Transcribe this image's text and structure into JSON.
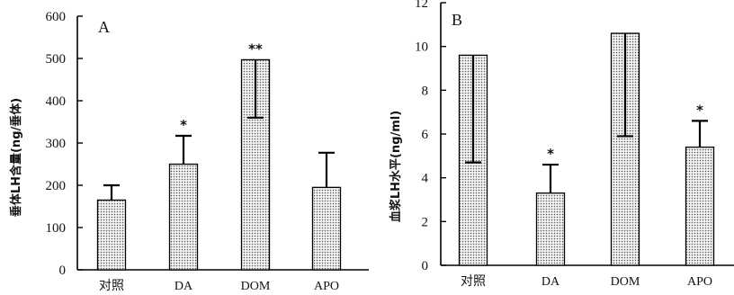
{
  "chart_data": [
    {
      "type": "bar",
      "panel": "A",
      "ylabel": "垂体LH含量(ng/垂体)",
      "ylim": [
        0,
        600
      ],
      "yticks": [
        0,
        100,
        200,
        300,
        400,
        500,
        600
      ],
      "categories": [
        "对照",
        "DA",
        "DOM",
        "APO"
      ],
      "values": [
        165,
        250,
        497,
        195
      ],
      "errors": [
        35,
        67,
        137,
        82
      ],
      "error_direction": [
        "up",
        "up",
        "down",
        "up"
      ],
      "significance": [
        "",
        "*",
        "**",
        ""
      ]
    },
    {
      "type": "bar",
      "panel": "B",
      "ylabel": "血浆LH水平(ng/ml)",
      "ylim": [
        0,
        12
      ],
      "yticks": [
        0,
        2,
        4,
        6,
        8,
        10,
        12
      ],
      "categories": [
        "对照",
        "DA",
        "DOM",
        "APO"
      ],
      "values": [
        9.6,
        3.3,
        10.6,
        5.4
      ],
      "errors": [
        4.9,
        1.3,
        4.7,
        1.2
      ],
      "error_direction": [
        "down",
        "up",
        "down",
        "up"
      ],
      "significance": [
        "",
        "*",
        "",
        "*"
      ]
    }
  ]
}
